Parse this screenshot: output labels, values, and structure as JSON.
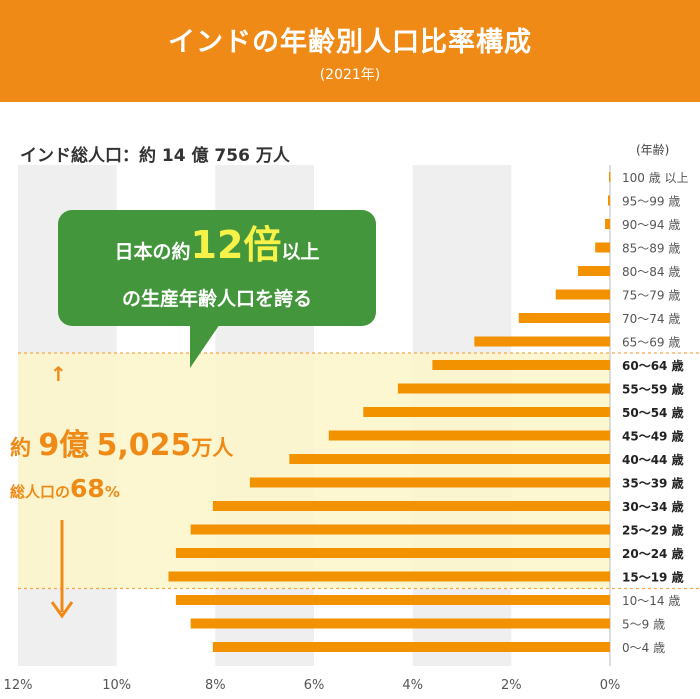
{
  "header": {
    "title": "インドの年齢別人口比率構成",
    "subtitle": "(2021年)",
    "background_color": "#ef8a17"
  },
  "population_label": "インド総人口：約 14 億 756 万人",
  "age_axis_unit": "(年齢)",
  "callout": {
    "line1_prefix": "日本の約",
    "line1_number": "12倍",
    "line1_suffix": "以上",
    "line2": "の生産年齢人口を誇る",
    "background_color": "#43963b",
    "number_color": "#f7f24a"
  },
  "working_age_annotation": {
    "prefix": "約",
    "number": "9億",
    "amount": "5,025",
    "unit": "万人",
    "share_prefix": "総人口の",
    "share_number": "68",
    "share_unit": "%",
    "highlight_color": "#fbf6c8",
    "text_color": "#ef8a17"
  },
  "chart_data": {
    "type": "bar",
    "orientation": "horizontal",
    "direction": "extends left from the 0% line",
    "xlabel": "",
    "ylabel": "",
    "xlim": [
      0,
      12
    ],
    "x_ticks": [
      "12%",
      "10%",
      "8%",
      "6%",
      "4%",
      "2%",
      "0%"
    ],
    "bar_color": "#f39200",
    "grid": "alternating vertical bands every 2%",
    "categories": [
      {
        "label": "100 歳 以上",
        "bold": false,
        "value": 0.02
      },
      {
        "label": "95～99 歳",
        "bold": false,
        "value": 0.04
      },
      {
        "label": "90～94 歳",
        "bold": false,
        "value": 0.1
      },
      {
        "label": "85～89 歳",
        "bold": false,
        "value": 0.3
      },
      {
        "label": "80～84 歳",
        "bold": false,
        "value": 0.65
      },
      {
        "label": "75～79 歳",
        "bold": false,
        "value": 1.1
      },
      {
        "label": "70～74 歳",
        "bold": false,
        "value": 1.85
      },
      {
        "label": "65～69 歳",
        "bold": false,
        "value": 2.75
      },
      {
        "label": "60～64 歳",
        "bold": true,
        "value": 3.6
      },
      {
        "label": "55～59 歳",
        "bold": true,
        "value": 4.3
      },
      {
        "label": "50～54 歳",
        "bold": true,
        "value": 5.0
      },
      {
        "label": "45～49 歳",
        "bold": true,
        "value": 5.7
      },
      {
        "label": "40～44 歳",
        "bold": true,
        "value": 6.5
      },
      {
        "label": "35～39 歳",
        "bold": true,
        "value": 7.3
      },
      {
        "label": "30～34 歳",
        "bold": true,
        "value": 8.05
      },
      {
        "label": "25～29 歳",
        "bold": true,
        "value": 8.5
      },
      {
        "label": "20～24 歳",
        "bold": true,
        "value": 8.8
      },
      {
        "label": "15～19 歳",
        "bold": true,
        "value": 8.95
      },
      {
        "label": "10～14 歳",
        "bold": false,
        "value": 8.8
      },
      {
        "label": "5～9 歳",
        "bold": false,
        "value": 8.5
      },
      {
        "label": "0～4 歳",
        "bold": false,
        "value": 8.05
      }
    ],
    "highlight_range": [
      "15～19 歳",
      "60～64 歳"
    ]
  }
}
